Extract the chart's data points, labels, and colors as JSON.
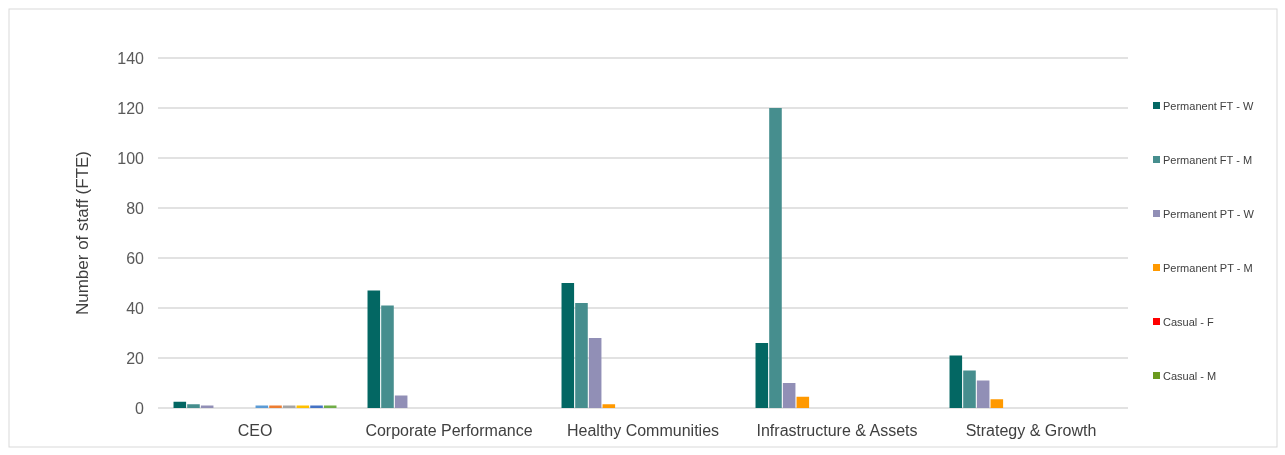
{
  "chart_data": {
    "type": "bar",
    "ylabel": "Number of staff (FTE)",
    "categories": [
      "CEO",
      "Corporate Performance",
      "Healthy Communities",
      "Infrastructure & Assets",
      "Strategy & Growth"
    ],
    "series": [
      {
        "name": "Permanent FT - W",
        "color": "#036763",
        "values": [
          2.5,
          47,
          50,
          26,
          21
        ]
      },
      {
        "name": "Permanent FT - M",
        "color": "#468e8e",
        "values": [
          1.5,
          41,
          42,
          120,
          15
        ]
      },
      {
        "name": "Permanent PT - W",
        "color": "#918fb6",
        "values": [
          1,
          5,
          28,
          10,
          11
        ]
      },
      {
        "name": "Permanent PT - M",
        "color": "#ff9900",
        "values": [
          0,
          0,
          1.5,
          4.5,
          3.5
        ]
      },
      {
        "name": "Casual - F",
        "color": "#ff0000",
        "values": [
          0,
          0,
          0,
          0,
          0
        ]
      },
      {
        "name": "Casual - M",
        "color": "#6b9a1e",
        "values": [
          0,
          0,
          0,
          0,
          0
        ]
      },
      {
        "color": "#5b9bd5",
        "values": [
          1,
          0,
          0,
          0,
          0
        ]
      },
      {
        "color": "#ed7d31",
        "values": [
          1,
          0,
          0,
          0,
          0
        ]
      },
      {
        "color": "#a5a5a5",
        "values": [
          1,
          0,
          0,
          0,
          0
        ]
      },
      {
        "color": "#ffc000",
        "values": [
          1,
          0,
          0,
          0,
          0
        ]
      },
      {
        "color": "#4472c4",
        "values": [
          1,
          0,
          0,
          0,
          0
        ]
      },
      {
        "color": "#70ad47",
        "values": [
          1,
          0,
          0,
          0,
          0
        ]
      }
    ],
    "ylim": [
      0,
      140
    ],
    "yticks": [
      0,
      20,
      40,
      60,
      80,
      100,
      120,
      140
    ],
    "grid": "y",
    "legend": "right"
  }
}
